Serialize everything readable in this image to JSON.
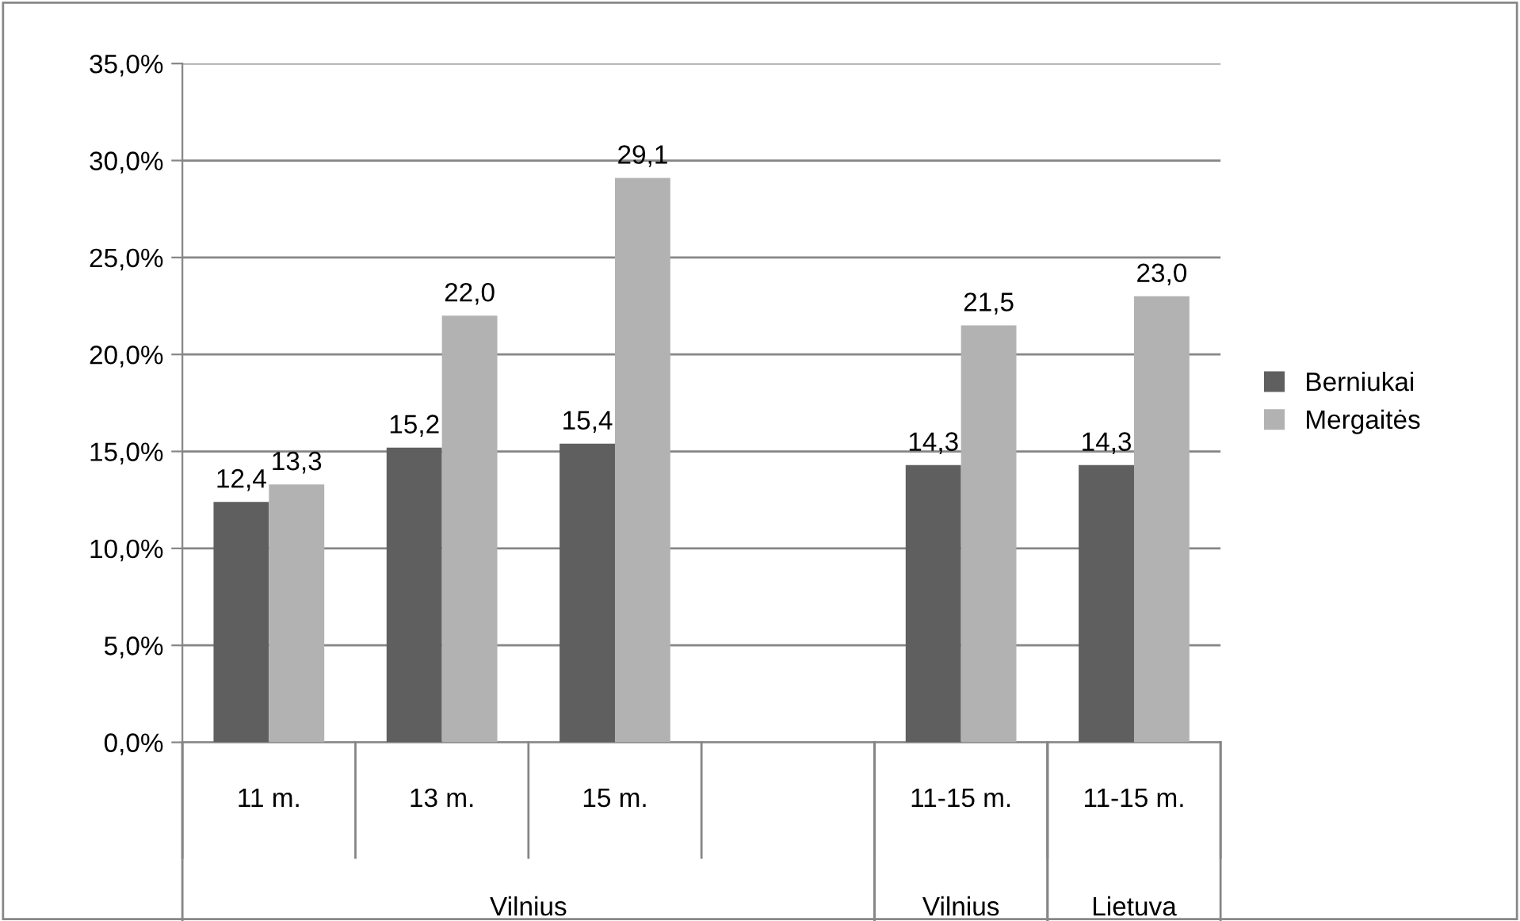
{
  "chart_data": {
    "type": "bar",
    "categories": [
      "11 m.",
      "13 m.",
      "15 m.",
      null,
      "11-15 m.",
      "11-15 m."
    ],
    "series": [
      {
        "name": "Berniukai",
        "color": "#5f5f5f",
        "values": [
          12.4,
          15.2,
          15.4,
          null,
          14.3,
          14.3
        ],
        "value_labels": [
          "12,4",
          "15,2",
          "15,4",
          null,
          "14,3",
          "14,3"
        ]
      },
      {
        "name": "Mergaitės",
        "color": "#b2b2b2",
        "values": [
          13.3,
          22.0,
          29.1,
          null,
          21.5,
          23.0
        ],
        "value_labels": [
          "13,3",
          "22,0",
          "29,1",
          null,
          "21,5",
          "23,0"
        ]
      }
    ],
    "ylim": [
      0,
      35
    ],
    "yticks": [
      {
        "value": 0,
        "label": "0,0%"
      },
      {
        "value": 5,
        "label": "5,0%"
      },
      {
        "value": 10,
        "label": "10,0%"
      },
      {
        "value": 15,
        "label": "15,0%"
      },
      {
        "value": 20,
        "label": "20,0%"
      },
      {
        "value": 25,
        "label": "25,0%"
      },
      {
        "value": 30,
        "label": "30,0%"
      },
      {
        "value": 35,
        "label": "35,0%"
      }
    ],
    "grid": "y",
    "legend": "right",
    "annotations": [
      "Vilnius",
      "Vilnius",
      "Lietuva"
    ]
  }
}
